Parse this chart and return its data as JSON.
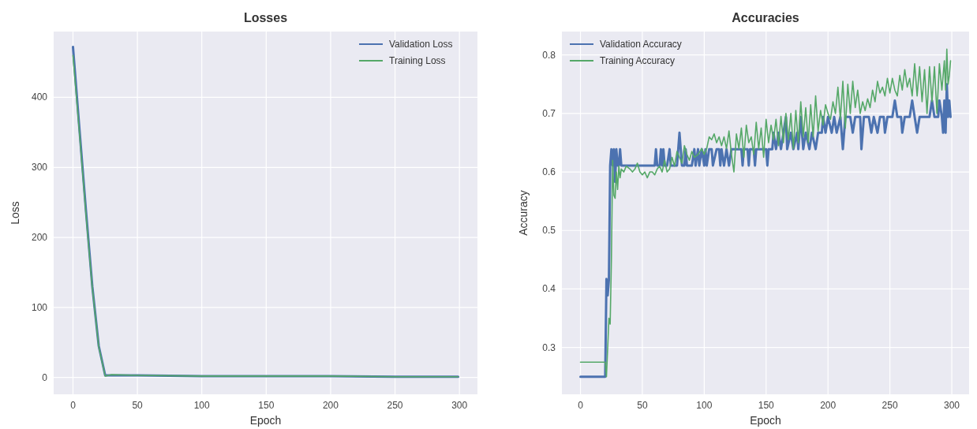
{
  "chart_data": [
    {
      "type": "line",
      "title": "Losses",
      "xlabel": "Epoch",
      "ylabel": "Loss",
      "xlim": [
        -15,
        314
      ],
      "ylim": [
        -24,
        494
      ],
      "xticks": [
        0,
        50,
        100,
        150,
        200,
        250,
        300
      ],
      "yticks": [
        0,
        100,
        200,
        300,
        400
      ],
      "grid": true,
      "legend": "top right",
      "line_style": "solid",
      "marker": "none",
      "series": [
        {
          "name": "Validation Loss",
          "color": "#4c72b0",
          "x": [
            0,
            5,
            10,
            15,
            20,
            25,
            30,
            50,
            100,
            150,
            200,
            250,
            299
          ],
          "values": [
            472,
            355,
            240,
            130,
            45,
            3,
            3,
            3,
            2,
            2,
            2,
            1,
            1
          ]
        },
        {
          "name": "Training Loss",
          "color": "#55a868",
          "x": [
            0,
            5,
            10,
            15,
            20,
            25,
            30,
            50,
            100,
            150,
            200,
            250,
            299
          ],
          "values": [
            460,
            350,
            235,
            128,
            44,
            2,
            4,
            3,
            2,
            2,
            2,
            1,
            1
          ]
        }
      ]
    },
    {
      "type": "line",
      "title": "Accuracies",
      "xlabel": "Epoch",
      "ylabel": "Accuracy",
      "xlim": [
        -15,
        314
      ],
      "ylim": [
        0.22,
        0.84
      ],
      "xticks": [
        0,
        50,
        100,
        150,
        200,
        250,
        300
      ],
      "yticks": [
        0.3,
        0.4,
        0.5,
        0.6,
        0.7,
        0.8
      ],
      "grid": true,
      "legend": "top left",
      "line_style": "solid",
      "marker": "none",
      "series": [
        {
          "name": "Validation Accuracy",
          "color": "#4c72b0",
          "x": [
            0,
            20,
            21,
            22,
            23,
            24,
            25,
            26,
            27,
            28,
            29,
            30,
            31,
            32,
            33,
            35,
            60,
            61,
            62,
            64,
            65,
            66,
            67,
            68,
            70,
            72,
            73,
            78,
            80,
            81,
            82,
            84,
            85,
            86,
            90,
            92,
            93,
            95,
            96,
            98,
            100,
            101,
            102,
            104,
            106,
            107,
            110,
            112,
            113,
            114,
            116,
            118,
            120,
            122,
            130,
            131,
            132,
            135,
            136,
            137,
            140,
            141,
            142,
            150,
            151,
            152,
            155,
            156,
            158,
            160,
            162,
            164,
            166,
            167,
            170,
            172,
            175,
            176,
            178,
            180,
            182,
            185,
            187,
            190,
            192,
            195,
            196,
            198,
            200,
            203,
            205,
            207,
            210,
            212,
            214,
            218,
            220,
            222,
            226,
            227,
            229,
            233,
            235,
            237,
            240,
            242,
            245,
            246,
            248,
            252,
            254,
            256,
            259,
            260,
            262,
            266,
            268,
            270,
            272,
            274,
            282,
            284,
            286,
            289,
            290,
            292,
            293,
            294,
            295,
            296,
            297,
            298,
            299
          ],
          "values": [
            0.25,
            0.25,
            0.417,
            0.389,
            0.417,
            0.611,
            0.639,
            0.611,
            0.639,
            0.583,
            0.639,
            0.611,
            0.611,
            0.639,
            0.611,
            0.611,
            0.611,
            0.639,
            0.611,
            0.611,
            0.639,
            0.611,
            0.639,
            0.611,
            0.611,
            0.639,
            0.611,
            0.611,
            0.667,
            0.639,
            0.611,
            0.611,
            0.639,
            0.611,
            0.611,
            0.639,
            0.611,
            0.639,
            0.611,
            0.639,
            0.611,
            0.639,
            0.611,
            0.639,
            0.639,
            0.611,
            0.639,
            0.639,
            0.611,
            0.639,
            0.611,
            0.639,
            0.611,
            0.639,
            0.639,
            0.611,
            0.639,
            0.639,
            0.611,
            0.639,
            0.639,
            0.611,
            0.639,
            0.639,
            0.611,
            0.639,
            0.639,
            0.667,
            0.639,
            0.667,
            0.639,
            0.667,
            0.694,
            0.639,
            0.667,
            0.639,
            0.667,
            0.639,
            0.694,
            0.639,
            0.667,
            0.639,
            0.667,
            0.639,
            0.667,
            0.667,
            0.694,
            0.667,
            0.694,
            0.667,
            0.694,
            0.667,
            0.694,
            0.639,
            0.694,
            0.694,
            0.667,
            0.694,
            0.694,
            0.639,
            0.694,
            0.694,
            0.667,
            0.694,
            0.667,
            0.694,
            0.694,
            0.667,
            0.694,
            0.694,
            0.722,
            0.694,
            0.694,
            0.667,
            0.694,
            0.694,
            0.722,
            0.694,
            0.667,
            0.694,
            0.694,
            0.722,
            0.694,
            0.694,
            0.722,
            0.694,
            0.667,
            0.722,
            0.667,
            0.75,
            0.694,
            0.722,
            0.694
          ]
        },
        {
          "name": "Training Accuracy",
          "color": "#55a868",
          "x": [
            0,
            20,
            21,
            22,
            23,
            24,
            25,
            26,
            27,
            28,
            29,
            30,
            31,
            32,
            33,
            35,
            37,
            40,
            42,
            44,
            46,
            48,
            50,
            52,
            54,
            56,
            58,
            60,
            62,
            64,
            66,
            68,
            70,
            72,
            74,
            76,
            78,
            80,
            82,
            84,
            86,
            88,
            90,
            92,
            95,
            98,
            100,
            102,
            104,
            106,
            108,
            110,
            112,
            114,
            116,
            118,
            120,
            122,
            124,
            126,
            128,
            130,
            132,
            134,
            136,
            138,
            140,
            142,
            144,
            146,
            148,
            150,
            152,
            154,
            156,
            158,
            160,
            162,
            164,
            166,
            168,
            170,
            172,
            174,
            176,
            178,
            180,
            182,
            184,
            186,
            188,
            190,
            192,
            194,
            196,
            198,
            200,
            202,
            204,
            206,
            208,
            210,
            212,
            214,
            216,
            218,
            220,
            222,
            224,
            226,
            228,
            230,
            232,
            234,
            236,
            238,
            240,
            242,
            244,
            246,
            248,
            250,
            252,
            254,
            256,
            258,
            260,
            262,
            264,
            266,
            268,
            270,
            272,
            274,
            276,
            278,
            280,
            282,
            284,
            286,
            288,
            290,
            292,
            294,
            295,
            296,
            297,
            298,
            299
          ],
          "values": [
            0.275,
            0.275,
            0.25,
            0.3,
            0.35,
            0.34,
            0.45,
            0.62,
            0.56,
            0.555,
            0.6,
            0.57,
            0.61,
            0.59,
            0.605,
            0.6,
            0.61,
            0.605,
            0.6,
            0.605,
            0.615,
            0.6,
            0.595,
            0.6,
            0.59,
            0.6,
            0.6,
            0.595,
            0.605,
            0.61,
            0.6,
            0.62,
            0.6,
            0.605,
            0.625,
            0.61,
            0.635,
            0.625,
            0.615,
            0.645,
            0.63,
            0.62,
            0.635,
            0.625,
            0.63,
            0.64,
            0.63,
            0.64,
            0.66,
            0.655,
            0.665,
            0.65,
            0.66,
            0.645,
            0.66,
            0.64,
            0.67,
            0.63,
            0.6,
            0.665,
            0.64,
            0.675,
            0.625,
            0.68,
            0.65,
            0.66,
            0.63,
            0.685,
            0.64,
            0.675,
            0.625,
            0.69,
            0.65,
            0.68,
            0.655,
            0.69,
            0.645,
            0.695,
            0.65,
            0.7,
            0.655,
            0.7,
            0.64,
            0.705,
            0.65,
            0.72,
            0.66,
            0.71,
            0.65,
            0.715,
            0.66,
            0.73,
            0.67,
            0.705,
            0.68,
            0.715,
            0.7,
            0.69,
            0.72,
            0.7,
            0.745,
            0.69,
            0.755,
            0.675,
            0.75,
            0.7,
            0.755,
            0.71,
            0.74,
            0.7,
            0.72,
            0.705,
            0.725,
            0.71,
            0.74,
            0.72,
            0.755,
            0.735,
            0.745,
            0.73,
            0.76,
            0.735,
            0.76,
            0.74,
            0.73,
            0.765,
            0.74,
            0.775,
            0.745,
            0.76,
            0.73,
            0.785,
            0.73,
            0.78,
            0.72,
            0.775,
            0.7,
            0.78,
            0.72,
            0.78,
            0.7,
            0.785,
            0.74,
            0.79,
            0.74,
            0.81,
            0.75,
            0.765,
            0.79
          ]
        }
      ]
    }
  ]
}
